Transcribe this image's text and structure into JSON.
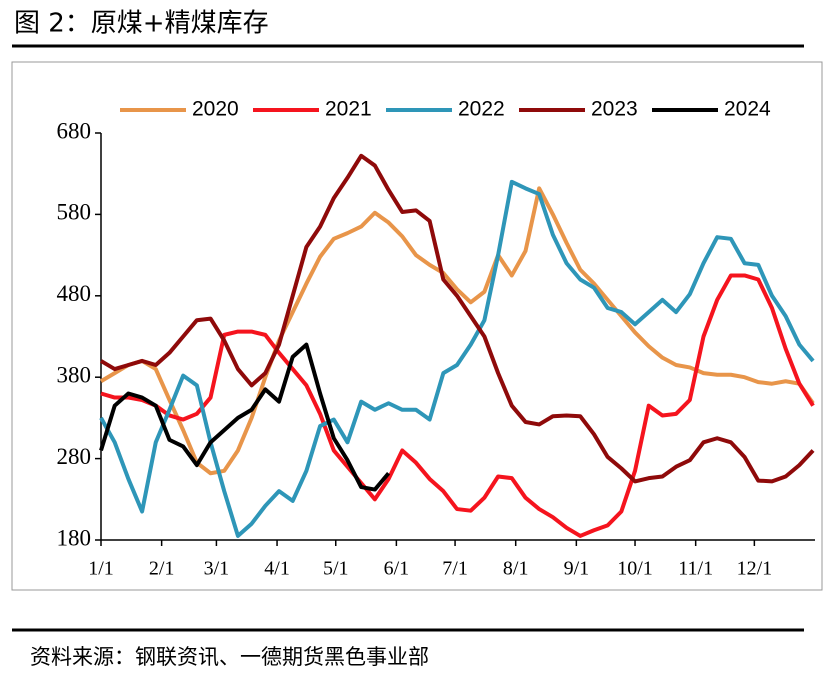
{
  "title": "图 2：原煤+精煤库存",
  "source": "资料来源：钢联资讯、一德期货黑色事业部",
  "chart_data": {
    "type": "line",
    "x": [
      0,
      7,
      14,
      21,
      28,
      35,
      42,
      49,
      56,
      63,
      70,
      77,
      84,
      91,
      98,
      105,
      112,
      119,
      126,
      133,
      140,
      147,
      154,
      161,
      168,
      175,
      182,
      189,
      196,
      203,
      210,
      217,
      224,
      231,
      238,
      245,
      252,
      259,
      266,
      273,
      280,
      287,
      294,
      301,
      308,
      315,
      322,
      329,
      336,
      343,
      350,
      357,
      364
    ],
    "xlim": [
      0,
      365
    ],
    "xticks": [
      {
        "value": 0,
        "label": "1/1"
      },
      {
        "value": 31,
        "label": "2/1"
      },
      {
        "value": 59,
        "label": "3/1"
      },
      {
        "value": 90,
        "label": "4/1"
      },
      {
        "value": 120,
        "label": "5/1"
      },
      {
        "value": 151,
        "label": "6/1"
      },
      {
        "value": 181,
        "label": "7/1"
      },
      {
        "value": 212,
        "label": "8/1"
      },
      {
        "value": 243,
        "label": "9/1"
      },
      {
        "value": 273,
        "label": "10/1"
      },
      {
        "value": 304,
        "label": "11/1"
      },
      {
        "value": 334,
        "label": "12/1"
      }
    ],
    "ylim": [
      180,
      680
    ],
    "yticks": [
      180,
      280,
      380,
      480,
      580,
      680
    ],
    "legend": "top",
    "series": [
      {
        "name": "2020",
        "color": "#e8954a",
        "values": [
          375,
          385,
          395,
          400,
          390,
          352,
          315,
          275,
          262,
          265,
          290,
          330,
          380,
          425,
          460,
          495,
          528,
          550,
          557,
          565,
          582,
          570,
          553,
          530,
          518,
          508,
          488,
          472,
          485,
          530,
          505,
          535,
          612,
          580,
          545,
          512,
          495,
          475,
          455,
          435,
          418,
          404,
          395,
          392,
          385,
          383,
          383,
          380,
          374,
          372,
          375,
          372,
          348
        ]
      },
      {
        "name": "2021",
        "color": "#f5141e",
        "values": [
          360,
          355,
          355,
          352,
          345,
          333,
          328,
          335,
          355,
          432,
          436,
          436,
          432,
          410,
          390,
          370,
          335,
          290,
          270,
          250,
          230,
          255,
          290,
          275,
          255,
          240,
          218,
          216,
          232,
          258,
          256,
          232,
          218,
          208,
          195,
          185,
          192,
          198,
          215,
          265,
          345,
          333,
          335,
          352,
          430,
          475,
          505,
          505,
          500,
          465,
          415,
          372,
          345
        ]
      },
      {
        "name": "2022",
        "color": "#2e96b8",
        "values": [
          330,
          300,
          255,
          215,
          300,
          340,
          382,
          370,
          300,
          240,
          185,
          200,
          222,
          240,
          228,
          265,
          320,
          328,
          300,
          350,
          340,
          348,
          340,
          340,
          328,
          385,
          395,
          420,
          450,
          530,
          620,
          612,
          605,
          555,
          520,
          500,
          490,
          465,
          460,
          445,
          460,
          475,
          460,
          482,
          520,
          552,
          550,
          520,
          518,
          480,
          455,
          420,
          400
        ]
      },
      {
        "name": "2023",
        "color": "#8f0a0a",
        "values": [
          400,
          390,
          395,
          400,
          395,
          410,
          430,
          450,
          452,
          425,
          390,
          370,
          385,
          420,
          480,
          540,
          565,
          600,
          625,
          652,
          640,
          610,
          583,
          585,
          572,
          500,
          480,
          455,
          430,
          385,
          345,
          325,
          322,
          332,
          333,
          332,
          310,
          282,
          268,
          252,
          256,
          258,
          270,
          278,
          300,
          305,
          300,
          282,
          253,
          252,
          258,
          272,
          290
        ]
      },
      {
        "name": "2024",
        "color": "#000000",
        "values": [
          290,
          345,
          360,
          355,
          345,
          303,
          295,
          272,
          300,
          315,
          330,
          340,
          365,
          350,
          405,
          420,
          360,
          305,
          278,
          245,
          242,
          262,
          null,
          null,
          null,
          null,
          null,
          null,
          null,
          null,
          null,
          null,
          null,
          null,
          null,
          null,
          null,
          null,
          null,
          null,
          null,
          null,
          null,
          null,
          null,
          null,
          null,
          null,
          null,
          null,
          null,
          null,
          null
        ]
      }
    ]
  }
}
